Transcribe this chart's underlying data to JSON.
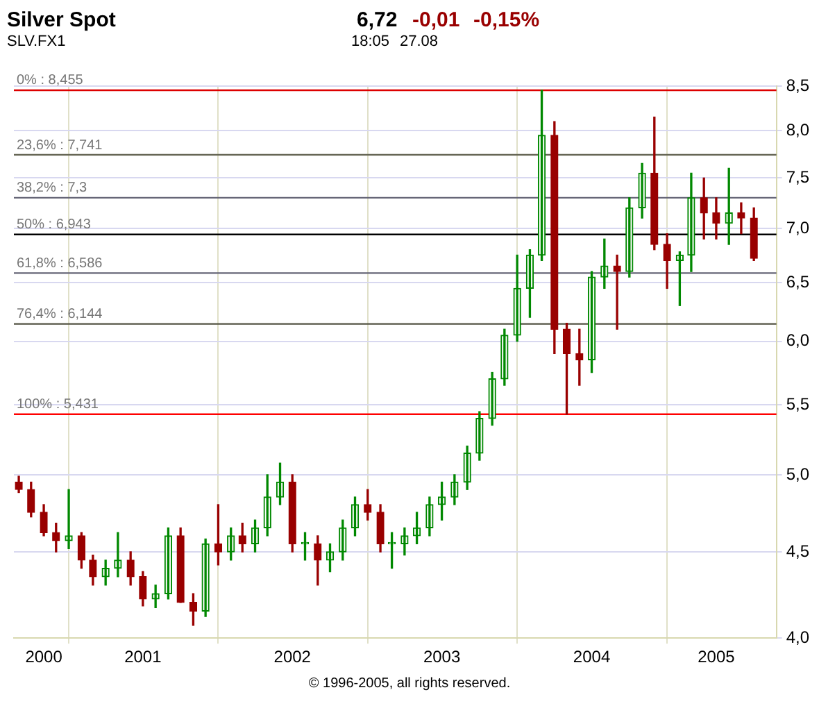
{
  "chart_data": {
    "type": "candlestick",
    "title": "Silver Spot",
    "subtitle": "SLV.FX1",
    "annotations": [
      "6,72",
      "-0,01",
      "-0,15%",
      "18:05",
      "27.08",
      "© 1996-2005, all rights reserved."
    ],
    "x": [
      "2000-09",
      "2000-10",
      "2000-11",
      "2000-12",
      "2001-01",
      "2001-02",
      "2001-03",
      "2001-04",
      "2001-05",
      "2001-06",
      "2001-07",
      "2001-08",
      "2001-09",
      "2001-10",
      "2001-11",
      "2001-12",
      "2002-01",
      "2002-02",
      "2002-03",
      "2002-04",
      "2002-05",
      "2002-06",
      "2002-07",
      "2002-08",
      "2002-09",
      "2002-10",
      "2002-11",
      "2002-12",
      "2003-01",
      "2003-02",
      "2003-03",
      "2003-04",
      "2003-05",
      "2003-06",
      "2003-07",
      "2003-08",
      "2003-09",
      "2003-10",
      "2003-11",
      "2003-12",
      "2004-01",
      "2004-02",
      "2004-03",
      "2004-04",
      "2004-05",
      "2004-06",
      "2004-07",
      "2004-08",
      "2004-09",
      "2004-10",
      "2004-11",
      "2004-12",
      "2005-01",
      "2005-02",
      "2005-03",
      "2005-04",
      "2005-05",
      "2005-06",
      "2005-07",
      "2005-08"
    ],
    "ohlc": [
      [
        4.95,
        4.99,
        4.88,
        4.9
      ],
      [
        4.9,
        4.95,
        4.72,
        4.75
      ],
      [
        4.75,
        4.8,
        4.6,
        4.62
      ],
      [
        4.62,
        4.68,
        4.5,
        4.57
      ],
      [
        4.57,
        4.9,
        4.52,
        4.6
      ],
      [
        4.6,
        4.62,
        4.4,
        4.45
      ],
      [
        4.45,
        4.48,
        4.3,
        4.35
      ],
      [
        4.35,
        4.45,
        4.3,
        4.4
      ],
      [
        4.4,
        4.62,
        4.35,
        4.45
      ],
      [
        4.45,
        4.5,
        4.3,
        4.35
      ],
      [
        4.35,
        4.38,
        4.18,
        4.22
      ],
      [
        4.22,
        4.3,
        4.17,
        4.25
      ],
      [
        4.25,
        4.65,
        4.22,
        4.6
      ],
      [
        4.6,
        4.65,
        4.2,
        4.2
      ],
      [
        4.2,
        4.25,
        4.07,
        4.15
      ],
      [
        4.15,
        4.58,
        4.12,
        4.55
      ],
      [
        4.55,
        4.8,
        4.42,
        4.5
      ],
      [
        4.5,
        4.65,
        4.45,
        4.6
      ],
      [
        4.6,
        4.68,
        4.5,
        4.55
      ],
      [
        4.55,
        4.7,
        4.5,
        4.65
      ],
      [
        4.65,
        5.0,
        4.6,
        4.85
      ],
      [
        4.85,
        5.08,
        4.8,
        4.95
      ],
      [
        4.95,
        5.0,
        4.5,
        4.55
      ],
      [
        4.55,
        4.62,
        4.45,
        4.55
      ],
      [
        4.55,
        4.6,
        4.3,
        4.45
      ],
      [
        4.45,
        4.55,
        4.38,
        4.5
      ],
      [
        4.5,
        4.7,
        4.45,
        4.65
      ],
      [
        4.65,
        4.85,
        4.6,
        4.8
      ],
      [
        4.8,
        4.9,
        4.7,
        4.75
      ],
      [
        4.75,
        4.8,
        4.5,
        4.55
      ],
      [
        4.55,
        4.62,
        4.4,
        4.55
      ],
      [
        4.55,
        4.65,
        4.48,
        4.6
      ],
      [
        4.6,
        4.75,
        4.55,
        4.65
      ],
      [
        4.65,
        4.85,
        4.6,
        4.8
      ],
      [
        4.8,
        4.95,
        4.7,
        4.85
      ],
      [
        4.85,
        5.0,
        4.8,
        4.95
      ],
      [
        4.95,
        5.2,
        4.9,
        5.15
      ],
      [
        5.15,
        5.45,
        5.1,
        5.4
      ],
      [
        5.4,
        5.75,
        5.35,
        5.7
      ],
      [
        5.7,
        6.1,
        5.65,
        6.05
      ],
      [
        6.05,
        6.75,
        6.0,
        6.45
      ],
      [
        6.45,
        6.8,
        6.2,
        6.75
      ],
      [
        6.75,
        8.455,
        6.7,
        7.95
      ],
      [
        7.95,
        8.1,
        5.9,
        6.1
      ],
      [
        6.1,
        6.15,
        5.431,
        5.9
      ],
      [
        5.9,
        6.1,
        5.65,
        5.85
      ],
      [
        5.85,
        6.6,
        5.75,
        6.55
      ],
      [
        6.55,
        6.9,
        6.45,
        6.65
      ],
      [
        6.65,
        6.75,
        6.1,
        6.6
      ],
      [
        6.6,
        7.3,
        6.55,
        7.2
      ],
      [
        7.2,
        7.65,
        7.1,
        7.55
      ],
      [
        7.55,
        8.15,
        6.8,
        6.85
      ],
      [
        6.85,
        6.95,
        6.45,
        6.7
      ],
      [
        6.7,
        6.78,
        6.3,
        6.75
      ],
      [
        6.75,
        7.55,
        6.6,
        7.3
      ],
      [
        7.3,
        7.5,
        6.9,
        7.15
      ],
      [
        7.15,
        7.3,
        6.9,
        7.05
      ],
      [
        7.05,
        7.6,
        6.85,
        7.15
      ],
      [
        7.15,
        7.25,
        6.95,
        7.1
      ],
      [
        7.1,
        7.2,
        6.7,
        6.72
      ]
    ],
    "xlim": [
      "2000-08-20",
      "2005-09-25"
    ],
    "xticks": [
      {
        "value": "2000-11-01",
        "label": "2000"
      },
      {
        "value": "2001-01-01",
        "label": null
      },
      {
        "value": "2001-07-01",
        "label": "2001"
      },
      {
        "value": "2002-01-01",
        "label": null
      },
      {
        "value": "2002-07-01",
        "label": "2002"
      },
      {
        "value": "2003-01-01",
        "label": null
      },
      {
        "value": "2003-07-01",
        "label": "2003"
      },
      {
        "value": "2004-01-01",
        "label": null
      },
      {
        "value": "2004-07-01",
        "label": "2004"
      },
      {
        "value": "2005-01-01",
        "label": null
      },
      {
        "value": "2005-05-01",
        "label": "2005"
      }
    ],
    "ylim": [
      4,
      8.5
    ],
    "yticks": [
      {
        "value": 4,
        "label": "4,0"
      },
      {
        "value": 4.5,
        "label": "4,5"
      },
      {
        "value": 5,
        "label": "5,0"
      },
      {
        "value": 5.5,
        "label": "5,5"
      },
      {
        "value": 6,
        "label": "6,0"
      },
      {
        "value": 6.5,
        "label": "6,5"
      },
      {
        "value": 7,
        "label": "7,0"
      },
      {
        "value": 7.5,
        "label": "7,5"
      },
      {
        "value": 8,
        "label": "8,0"
      },
      {
        "value": 8.5,
        "label": "8,5"
      }
    ],
    "log": "y",
    "grid": true,
    "legend": false,
    "ref_lines": [
      {
        "axis": "y",
        "value": 8.455,
        "label": "0% : 8,455",
        "color": "#dd0000"
      },
      {
        "axis": "y",
        "value": 7.741,
        "label": "23,6% : 7,741",
        "color": "#666655"
      },
      {
        "axis": "y",
        "value": 7.3,
        "label": "38,2% : 7,3",
        "color": "#666677"
      },
      {
        "axis": "y",
        "value": 6.943,
        "label": "50% : 6,943",
        "color": "#000000"
      },
      {
        "axis": "y",
        "value": 6.586,
        "label": "61,8% : 6,586",
        "color": "#666677"
      },
      {
        "axis": "y",
        "value": 6.144,
        "label": "76,4% : 6,144",
        "color": "#555544"
      },
      {
        "axis": "y",
        "value": 5.431,
        "label": "100% : 5,431",
        "color": "#ff0000"
      }
    ]
  }
}
